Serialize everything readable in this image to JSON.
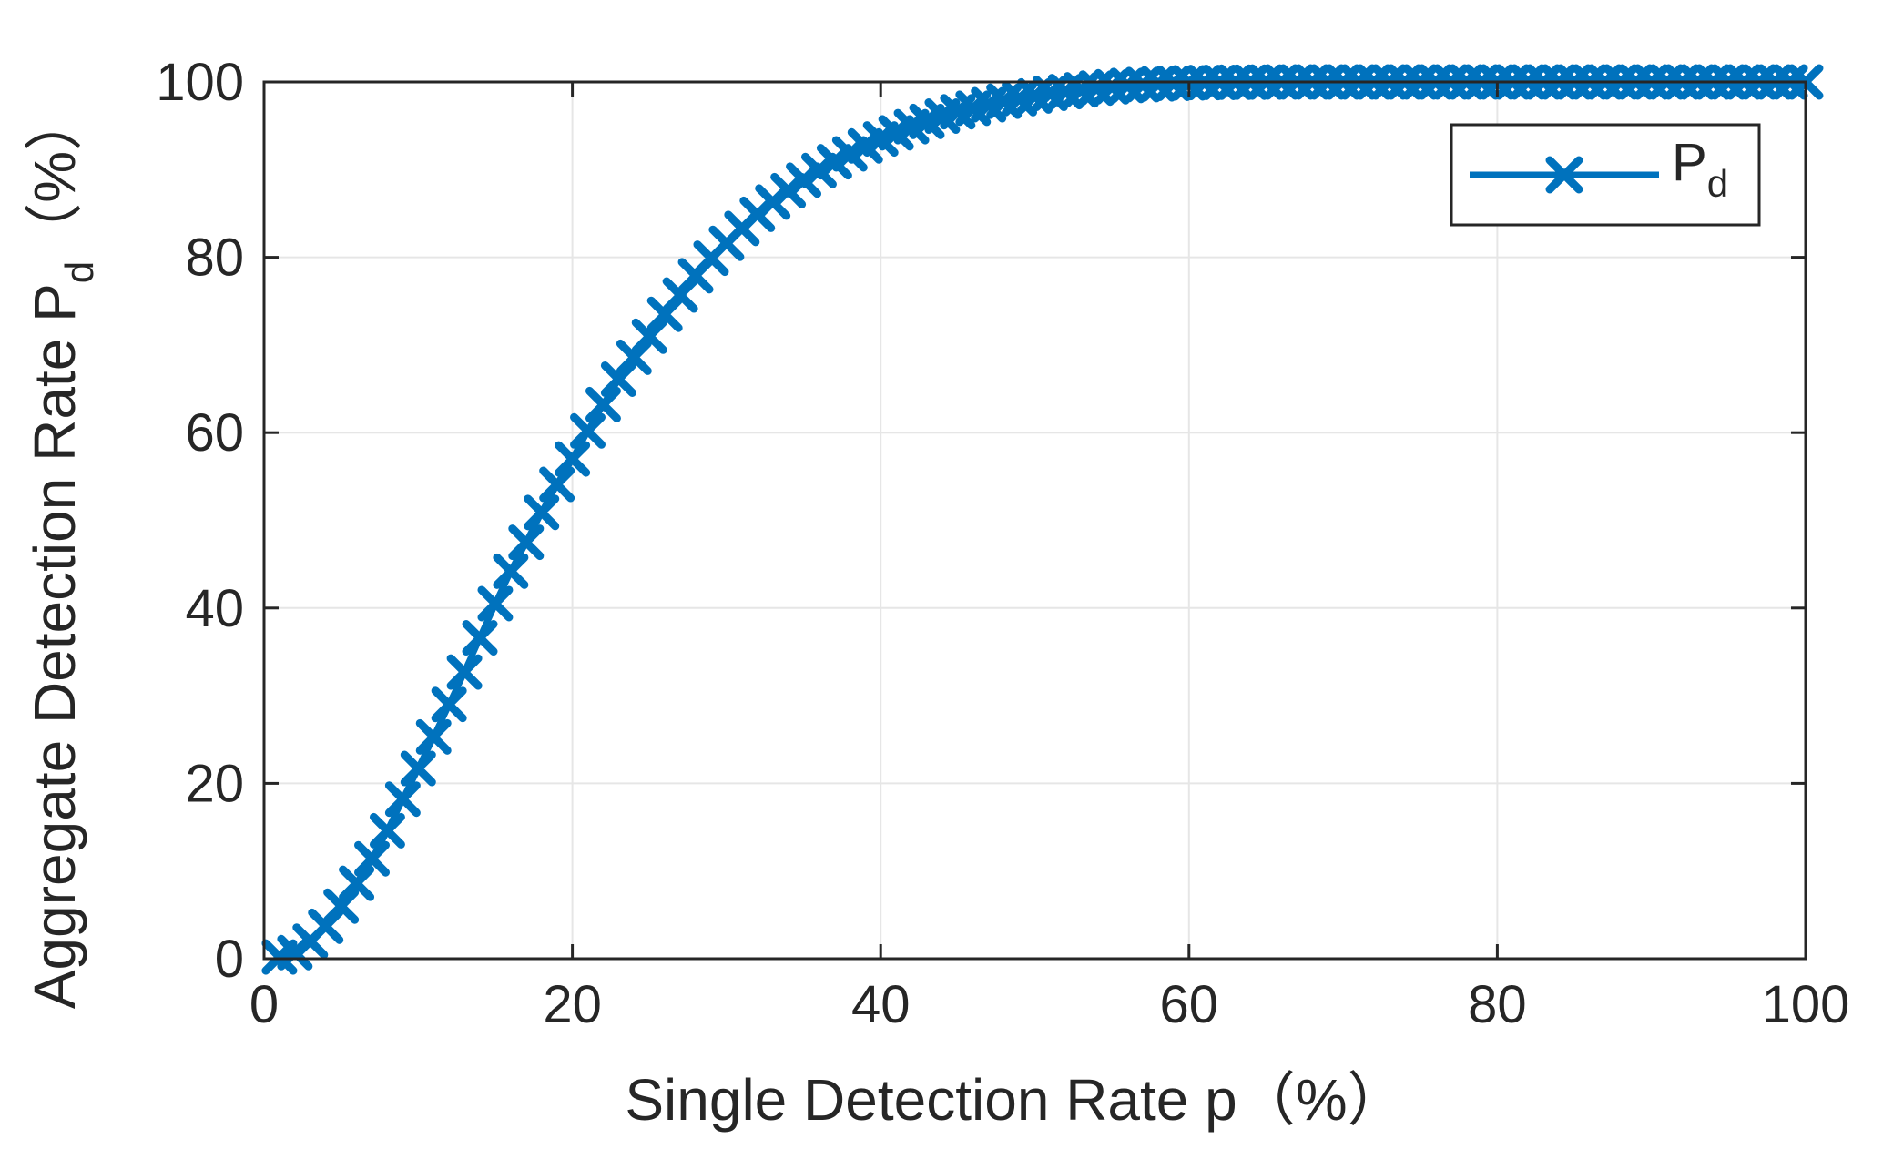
{
  "chart_data": {
    "type": "line",
    "title": "",
    "xlabel": "Single Detection Rate p（%）",
    "ylabel_main": "Aggregate Detection Rate P",
    "ylabel_sub": "d",
    "ylabel_suffix": "（%）",
    "xlim": [
      0,
      100
    ],
    "ylim": [
      0,
      100
    ],
    "xticks": [
      0,
      20,
      40,
      60,
      80,
      100
    ],
    "yticks": [
      0,
      20,
      40,
      60,
      80,
      100
    ],
    "xtick_labels": [
      "0",
      "20",
      "40",
      "60",
      "80",
      "100"
    ],
    "ytick_labels": [
      "0",
      "20",
      "40",
      "60",
      "80",
      "100"
    ],
    "grid": true,
    "legend_position": "top-right",
    "colors": {
      "series": "#0072BD",
      "grid": "#e6e6e6",
      "axes": "#262626"
    },
    "series": [
      {
        "name_main": "P",
        "name_sub": "d",
        "marker": "x",
        "x": [
          1,
          2,
          3,
          4,
          5,
          6,
          7,
          8,
          9,
          10,
          11,
          12,
          13,
          14,
          15,
          16,
          17,
          18,
          19,
          20,
          21,
          22,
          23,
          24,
          25,
          26,
          27,
          28,
          29,
          30,
          31,
          32,
          33,
          34,
          35,
          36,
          37,
          38,
          39,
          40,
          41,
          42,
          43,
          44,
          45,
          46,
          47,
          48,
          49,
          50,
          51,
          52,
          53,
          54,
          55,
          56,
          57,
          58,
          59,
          60,
          61,
          62,
          63,
          64,
          65,
          66,
          67,
          68,
          69,
          70,
          71,
          72,
          73,
          74,
          75,
          76,
          77,
          78,
          79,
          80,
          81,
          82,
          83,
          84,
          85,
          86,
          87,
          88,
          89,
          90,
          91,
          92,
          93,
          94,
          95,
          96,
          97,
          98,
          99,
          100
        ],
        "y": [
          0.2,
          0.7,
          2.0,
          3.7,
          6.0,
          8.6,
          11.4,
          14.6,
          18.2,
          21.7,
          25.3,
          29.0,
          32.7,
          36.6,
          40.5,
          44.2,
          47.5,
          50.9,
          54.1,
          57.0,
          60.2,
          63.2,
          66.1,
          68.6,
          71.0,
          73.5,
          75.7,
          77.9,
          79.9,
          81.6,
          83.3,
          84.9,
          86.3,
          87.6,
          88.8,
          89.9,
          90.9,
          91.8,
          92.7,
          93.5,
          94.2,
          94.9,
          95.5,
          96.1,
          96.6,
          97.0,
          97.4,
          97.8,
          98.1,
          98.4,
          98.7,
          98.9,
          99.1,
          99.3,
          99.45,
          99.6,
          99.7,
          99.78,
          99.85,
          99.9,
          99.93,
          99.95,
          99.97,
          99.98,
          99.99,
          100,
          100,
          100,
          100,
          100,
          100,
          100,
          100,
          100,
          100,
          100,
          100,
          100,
          100,
          100,
          100,
          100,
          100,
          100,
          100,
          100,
          100,
          100,
          100,
          100,
          100,
          100,
          100,
          100,
          100,
          100,
          100,
          100,
          100,
          100
        ]
      }
    ]
  }
}
